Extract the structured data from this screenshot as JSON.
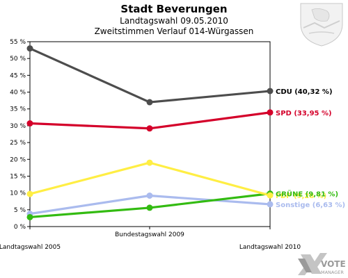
{
  "header": {
    "title": "Stadt Beverungen",
    "subtitle1": "Landtagswahl 09.05.2010",
    "subtitle2": "Zweitstimmen Verlauf 014-Würgassen"
  },
  "branding": {
    "logo_line1": "VOTE",
    "logo_line2": "MANAGER"
  },
  "chart_data": {
    "type": "line",
    "categories": [
      "Landtagswahl 2005",
      "Bundestagswahl 2009",
      "Landtagswahl 2010"
    ],
    "ylim": [
      0,
      55
    ],
    "yticks": [
      0,
      5,
      10,
      15,
      20,
      25,
      30,
      35,
      40,
      45,
      50,
      55
    ],
    "ytick_suffix": " %",
    "grid": false,
    "series": [
      {
        "name": "CDU",
        "end_label": "CDU (40,32 %)",
        "color": "#4d4d4d",
        "label_color": "#000000",
        "values": [
          53.0,
          37.0,
          40.32
        ]
      },
      {
        "name": "SPD",
        "end_label": "SPD (33,95 %)",
        "color": "#d4002a",
        "label_color": "#d4002a",
        "values": [
          30.7,
          29.2,
          33.95
        ]
      },
      {
        "name": "FDP",
        "end_label": "FDP (9,28 %)",
        "color": "#ffee44",
        "label_color": "#ffee44",
        "values": [
          9.7,
          19.0,
          9.28
        ]
      },
      {
        "name": "GRÜNE",
        "end_label": "GRÜNE (9,81 %)",
        "color": "#33bb11",
        "label_color": "#33bb11",
        "values": [
          2.8,
          5.6,
          9.81
        ]
      },
      {
        "name": "Sonstige",
        "end_label": "Sonstige (6,63 %)",
        "color": "#aabbee",
        "label_color": "#aabbee",
        "values": [
          3.8,
          9.2,
          6.63
        ]
      }
    ]
  }
}
